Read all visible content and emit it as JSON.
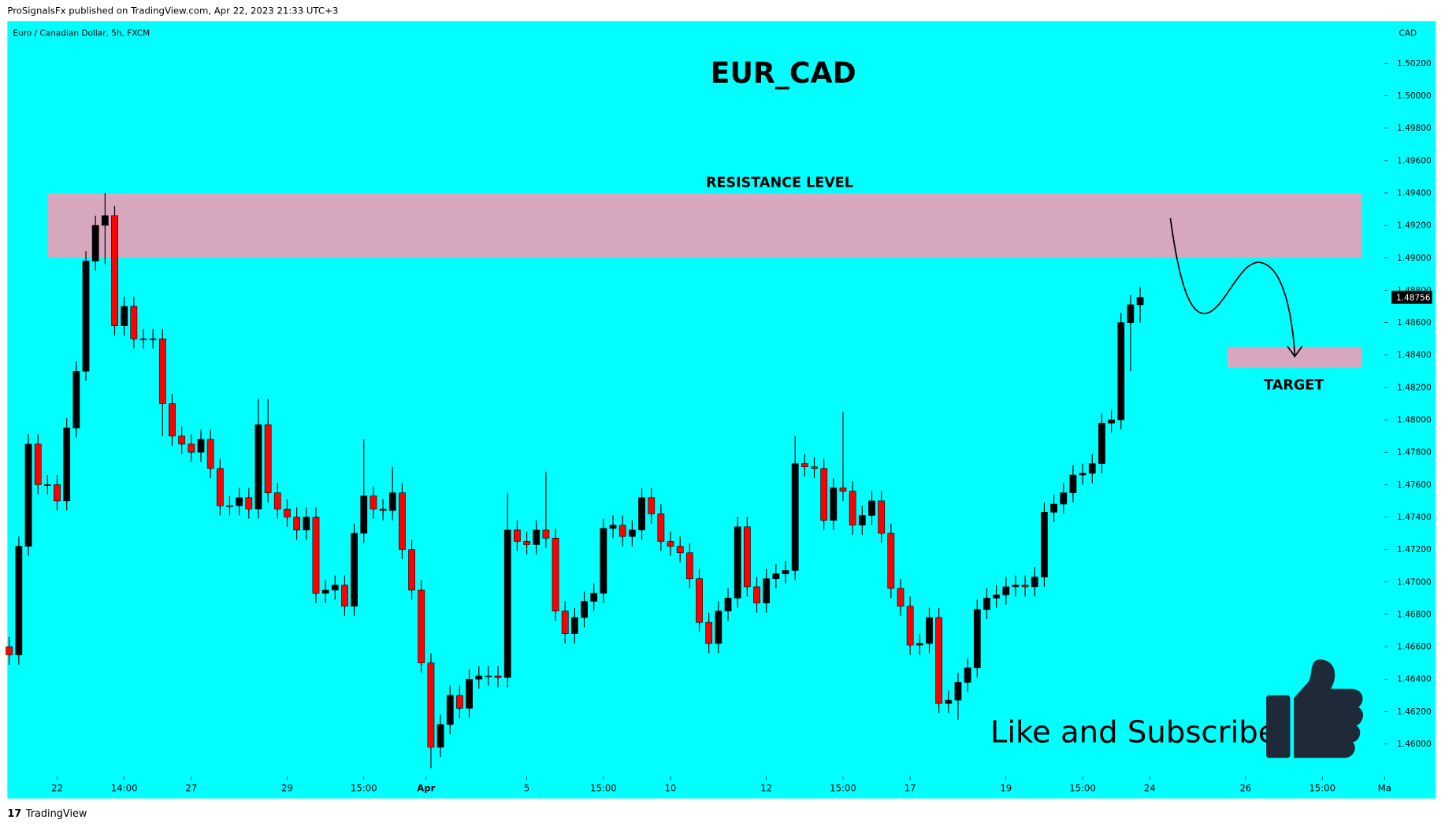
{
  "chart_data": {
    "type": "candlestick",
    "header": "ProSignalsFx published on TradingView.com, Apr 22, 2023 21:33 UTC+3",
    "symbol": "Euro / Canadian Dollar, 5h, FXCM",
    "currency": "CAD",
    "title": "EUR_CAD",
    "footer": "TradingView",
    "annotations": [
      {
        "text": "RESISTANCE LEVEL",
        "range": [
          1.49,
          1.494
        ],
        "color": "#d6a7bf"
      },
      {
        "text": "TARGET",
        "range": [
          1.4832,
          1.4845
        ],
        "color": "#d6a7bf"
      },
      {
        "text": "Like and Subscribe"
      }
    ],
    "up_color": "#000000",
    "down_color": "#ff0000",
    "last_price": 1.48756,
    "last_price_label": "1.48756",
    "ylim": [
      1.458,
      1.5046
    ],
    "yticks": [
      {
        "value": 1.46,
        "label": "1.46000"
      },
      {
        "value": 1.462,
        "label": "1.46200"
      },
      {
        "value": 1.464,
        "label": "1.46400"
      },
      {
        "value": 1.466,
        "label": "1.46600"
      },
      {
        "value": 1.468,
        "label": "1.46800"
      },
      {
        "value": 1.47,
        "label": "1.47000"
      },
      {
        "value": 1.472,
        "label": "1.47200"
      },
      {
        "value": 1.474,
        "label": "1.47400"
      },
      {
        "value": 1.476,
        "label": "1.47600"
      },
      {
        "value": 1.478,
        "label": "1.47800"
      },
      {
        "value": 1.48,
        "label": "1.48000"
      },
      {
        "value": 1.482,
        "label": "1.48200"
      },
      {
        "value": 1.484,
        "label": "1.48400"
      },
      {
        "value": 1.486,
        "label": "1.48600"
      },
      {
        "value": 1.488,
        "label": "1.48800"
      },
      {
        "value": 1.49,
        "label": "1.49000"
      },
      {
        "value": 1.492,
        "label": "1.49200"
      },
      {
        "value": 1.494,
        "label": "1.49400"
      },
      {
        "value": 1.496,
        "label": "1.49600"
      },
      {
        "value": 1.498,
        "label": "1.49800"
      },
      {
        "value": 1.5,
        "label": "1.50000"
      },
      {
        "value": 1.502,
        "label": "1.50200"
      }
    ],
    "xticks": [
      {
        "value": 5,
        "label": "22"
      },
      {
        "value": 12,
        "label": "14:00"
      },
      {
        "value": 19,
        "label": "27"
      },
      {
        "value": 29,
        "label": "29"
      },
      {
        "value": 37,
        "label": "15:00"
      },
      {
        "value": 43.5,
        "label": "Apr"
      },
      {
        "value": 54,
        "label": "5"
      },
      {
        "value": 62,
        "label": "15:00"
      },
      {
        "value": 69,
        "label": "10"
      },
      {
        "value": 79,
        "label": "12"
      },
      {
        "value": 87,
        "label": "15:00"
      },
      {
        "value": 94,
        "label": "17"
      },
      {
        "value": 104,
        "label": "19"
      },
      {
        "value": 112,
        "label": "15:00"
      },
      {
        "value": 119,
        "label": "24"
      },
      {
        "value": 129,
        "label": "26"
      },
      {
        "value": 137,
        "label": "15:00"
      },
      {
        "value": 143.5,
        "label": "Ma"
      }
    ],
    "open": [
      1.466,
      1.4655,
      1.4722,
      1.4785,
      1.476,
      1.476,
      1.475,
      1.4795,
      1.483,
      1.4898,
      1.492,
      1.4926,
      1.4858,
      1.487,
      1.485,
      1.485,
      1.485,
      1.481,
      1.479,
      1.4785,
      1.478,
      1.4788,
      1.477,
      1.4747,
      1.4747,
      1.4752,
      1.4745,
      1.4797,
      1.4755,
      1.4745,
      1.474,
      1.4732,
      1.474,
      1.4693,
      1.4695,
      1.4698,
      1.4685,
      1.473,
      1.4753,
      1.4745,
      1.4744,
      1.4755,
      1.472,
      1.4695,
      1.465,
      1.4598,
      1.4612,
      1.463,
      1.4622,
      1.464,
      1.4642,
      1.4642,
      1.4641,
      1.4732,
      1.4725,
      1.4723,
      1.4732,
      1.4727,
      1.4682,
      1.4668,
      1.4678,
      1.4688,
      1.4693,
      1.4733,
      1.4735,
      1.4728,
      1.4732,
      1.4752,
      1.4742,
      1.4725,
      1.4722,
      1.4718,
      1.4702,
      1.4675,
      1.4662,
      1.4682,
      1.469,
      1.4734,
      1.4697,
      1.4687,
      1.4702,
      1.4705,
      1.4707,
      1.4773,
      1.4771,
      1.477,
      1.4738,
      1.4758,
      1.4756,
      1.4735,
      1.4741,
      1.475,
      1.473,
      1.4696,
      1.4685,
      1.4661,
      1.4662,
      1.4678,
      1.4625,
      1.4627,
      1.4638,
      1.4647,
      1.4683,
      1.469,
      1.4692,
      1.4697,
      1.4698,
      1.4697,
      1.4703,
      1.4743,
      1.4748,
      1.4755,
      1.4766,
      1.4767,
      1.4773,
      1.4798,
      1.48,
      1.486,
      1.4871
    ],
    "high": [
      1.4666,
      1.4728,
      1.4791,
      1.4791,
      1.4766,
      1.4766,
      1.4801,
      1.4836,
      1.4904,
      1.4926,
      1.494,
      1.4932,
      1.4876,
      1.4876,
      1.4856,
      1.4856,
      1.4856,
      1.4816,
      1.4796,
      1.4791,
      1.4794,
      1.4794,
      1.4776,
      1.4753,
      1.4758,
      1.4758,
      1.4813,
      1.4813,
      1.4761,
      1.4751,
      1.4746,
      1.4746,
      1.4746,
      1.4701,
      1.4704,
      1.4704,
      1.4736,
      1.4788,
      1.4759,
      1.4751,
      1.4771,
      1.4761,
      1.4726,
      1.4701,
      1.4656,
      1.4618,
      1.4636,
      1.4636,
      1.4646,
      1.4648,
      1.4648,
      1.4648,
      1.4755,
      1.4738,
      1.4731,
      1.4738,
      1.4768,
      1.4733,
      1.4688,
      1.4684,
      1.4694,
      1.4699,
      1.4739,
      1.4741,
      1.4741,
      1.4738,
      1.4758,
      1.4758,
      1.4748,
      1.4731,
      1.4728,
      1.4724,
      1.4708,
      1.4681,
      1.4688,
      1.4696,
      1.474,
      1.474,
      1.4703,
      1.4708,
      1.4711,
      1.4713,
      1.479,
      1.4779,
      1.4777,
      1.4776,
      1.4764,
      1.4805,
      1.4762,
      1.4747,
      1.4756,
      1.4756,
      1.4736,
      1.4702,
      1.4691,
      1.4668,
      1.4684,
      1.4684,
      1.4633,
      1.4644,
      1.4653,
      1.4689,
      1.4696,
      1.4698,
      1.4703,
      1.4704,
      1.4704,
      1.4709,
      1.4749,
      1.4754,
      1.4761,
      1.4772,
      1.4773,
      1.4779,
      1.4804,
      1.4806,
      1.4866,
      1.4877,
      1.4882
    ],
    "low": [
      1.4649,
      1.4649,
      1.4716,
      1.4754,
      1.4754,
      1.4744,
      1.4744,
      1.4789,
      1.4824,
      1.4892,
      1.4896,
      1.4852,
      1.4852,
      1.4844,
      1.4844,
      1.4844,
      1.479,
      1.4784,
      1.4779,
      1.4774,
      1.4774,
      1.4764,
      1.4741,
      1.4741,
      1.4741,
      1.4739,
      1.4739,
      1.4749,
      1.4739,
      1.4734,
      1.4726,
      1.4726,
      1.4687,
      1.4687,
      1.4689,
      1.4679,
      1.4679,
      1.4724,
      1.4739,
      1.4738,
      1.4738,
      1.4714,
      1.4689,
      1.4644,
      1.4585,
      1.4592,
      1.4606,
      1.4616,
      1.4616,
      1.4634,
      1.4636,
      1.4635,
      1.4635,
      1.4719,
      1.4717,
      1.4717,
      1.4721,
      1.4676,
      1.4662,
      1.4662,
      1.4672,
      1.4682,
      1.4687,
      1.4727,
      1.4722,
      1.4722,
      1.4726,
      1.4736,
      1.4719,
      1.4716,
      1.4712,
      1.4696,
      1.4669,
      1.4656,
      1.4656,
      1.4676,
      1.4684,
      1.4691,
      1.4681,
      1.4681,
      1.4696,
      1.4699,
      1.4701,
      1.4765,
      1.4764,
      1.4732,
      1.4732,
      1.475,
      1.4729,
      1.4729,
      1.4735,
      1.4724,
      1.469,
      1.4679,
      1.4655,
      1.4655,
      1.4656,
      1.4619,
      1.4619,
      1.4615,
      1.4632,
      1.4641,
      1.4677,
      1.4684,
      1.4686,
      1.4691,
      1.4691,
      1.4691,
      1.4697,
      1.4737,
      1.4742,
      1.4749,
      1.476,
      1.4761,
      1.4767,
      1.4792,
      1.4794,
      1.483,
      1.486
    ],
    "close": [
      1.4655,
      1.4722,
      1.4785,
      1.476,
      1.476,
      1.475,
      1.4795,
      1.483,
      1.4898,
      1.492,
      1.4926,
      1.4858,
      1.487,
      1.485,
      1.485,
      1.485,
      1.481,
      1.479,
      1.4785,
      1.478,
      1.4788,
      1.477,
      1.4747,
      1.4747,
      1.4752,
      1.4745,
      1.4797,
      1.4755,
      1.4745,
      1.474,
      1.4732,
      1.474,
      1.4693,
      1.4695,
      1.4698,
      1.4685,
      1.473,
      1.4753,
      1.4745,
      1.4744,
      1.4755,
      1.472,
      1.4695,
      1.465,
      1.4598,
      1.4612,
      1.463,
      1.4622,
      1.464,
      1.4642,
      1.4642,
      1.4641,
      1.4732,
      1.4725,
      1.4723,
      1.4732,
      1.4727,
      1.4682,
      1.4668,
      1.4678,
      1.4688,
      1.4693,
      1.4733,
      1.4735,
      1.4728,
      1.4732,
      1.4752,
      1.4742,
      1.4725,
      1.4722,
      1.4718,
      1.4702,
      1.4675,
      1.4662,
      1.4682,
      1.469,
      1.4734,
      1.4697,
      1.4687,
      1.4702,
      1.4705,
      1.4707,
      1.4773,
      1.4771,
      1.477,
      1.4738,
      1.4758,
      1.4756,
      1.4735,
      1.4741,
      1.475,
      1.473,
      1.4696,
      1.4685,
      1.4661,
      1.4662,
      1.4678,
      1.4625,
      1.4627,
      1.4638,
      1.4647,
      1.4683,
      1.469,
      1.4692,
      1.4697,
      1.4698,
      1.4697,
      1.4703,
      1.4743,
      1.4748,
      1.4755,
      1.4766,
      1.4767,
      1.4773,
      1.4798,
      1.48,
      1.486,
      1.4871,
      1.48756
    ]
  }
}
